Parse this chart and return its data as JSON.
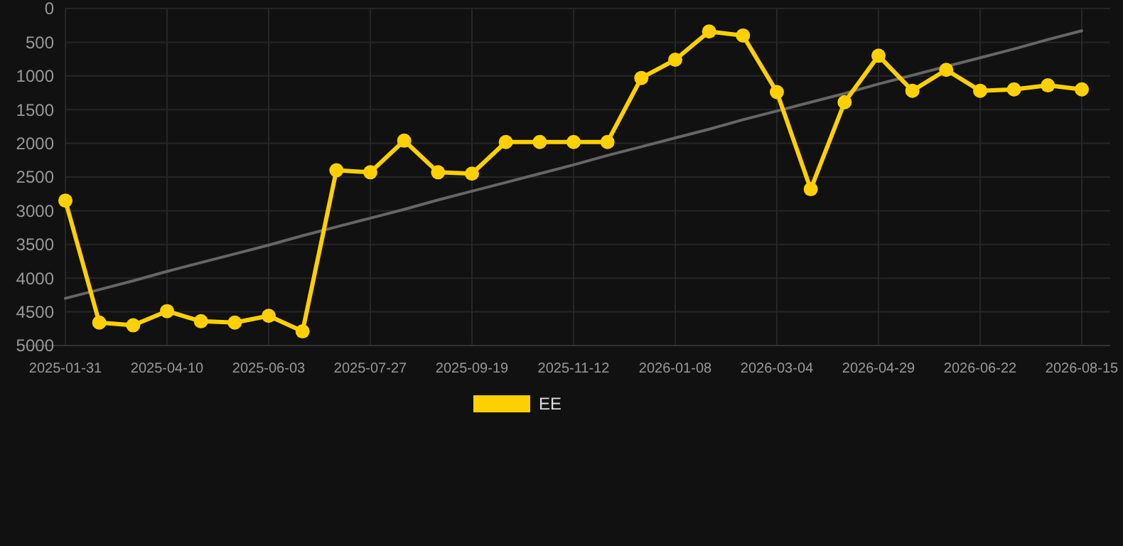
{
  "chart_data": {
    "type": "line",
    "categories": [
      "2025-01-31",
      null,
      null,
      "2025-04-10",
      null,
      null,
      "2025-06-03",
      null,
      null,
      "2025-07-27",
      null,
      null,
      "2025-09-19",
      null,
      null,
      "2025-11-12",
      null,
      null,
      "2026-01-08",
      null,
      null,
      "2026-03-04",
      null,
      null,
      "2026-04-29",
      null,
      null,
      "2026-06-22",
      null,
      null,
      "2026-08-15"
    ],
    "ylim": [
      5000,
      0
    ],
    "yticks": [
      0,
      500,
      1000,
      1500,
      2000,
      2500,
      3000,
      3500,
      4000,
      4500,
      5000
    ],
    "grid": true,
    "legend": "bottom",
    "marker": "circle",
    "line_style": "solid",
    "series": [
      {
        "name": "EE",
        "color": "#ffd000",
        "values": [
          2850,
          4660,
          4700,
          4490,
          4640,
          4660,
          4560,
          4790,
          2400,
          2430,
          1960,
          2430,
          2450,
          1980,
          1980,
          1980,
          1980,
          1030,
          760,
          340,
          400,
          1240,
          2680,
          1390,
          700,
          1220,
          910,
          1220,
          1200,
          1140,
          1200
        ]
      },
      {
        "type": "line",
        "color": "#666666",
        "marker": "none",
        "values": [
          4300,
          4170,
          4040,
          3900,
          3770,
          3640,
          3510,
          3370,
          3240,
          3110,
          2980,
          2840,
          2710,
          2580,
          2450,
          2320,
          2180,
          2050,
          1920,
          1790,
          1650,
          1520,
          1390,
          1260,
          1120,
          990,
          860,
          730,
          600,
          460,
          330
        ]
      }
    ]
  }
}
